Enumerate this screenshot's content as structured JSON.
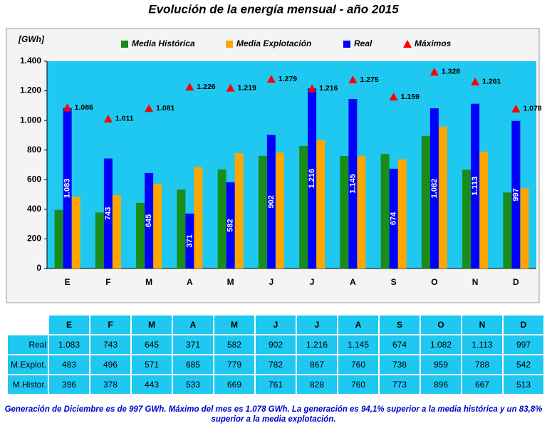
{
  "chart_data": {
    "type": "bar",
    "title": "Evolución de la energía mensual - año 2015",
    "y_label": "[GWh]",
    "categories": [
      "E",
      "F",
      "M",
      "A",
      "M",
      "J",
      "J",
      "A",
      "S",
      "O",
      "N",
      "D"
    ],
    "ylim": [
      0,
      1400
    ],
    "yticks": [
      0,
      200,
      400,
      600,
      800,
      {
        "value": 1000,
        "label": "1.000"
      },
      {
        "value": 1200,
        "label": "1.200"
      },
      {
        "value": 1400,
        "label": "1.400"
      }
    ],
    "grid": false,
    "legend": "top",
    "series": [
      {
        "name": "Media Histórica",
        "type": "bar",
        "color": "#1a8c1a",
        "values": [
          396,
          378,
          443,
          533,
          669,
          761,
          828,
          760,
          773,
          896,
          667,
          513
        ]
      },
      {
        "name": "Media Explotación",
        "type": "bar",
        "color": "#ffa500",
        "values": [
          483,
          496,
          571,
          685,
          779,
          782,
          867,
          760,
          738,
          959,
          788,
          542
        ]
      },
      {
        "name": "Real",
        "type": "bar",
        "color": "#0000ff",
        "values": [
          1083,
          743,
          645,
          371,
          582,
          902,
          1216,
          1145,
          674,
          1082,
          1113,
          997
        ],
        "value_labels": [
          "1.083",
          "743",
          "645",
          "371",
          "582",
          "902",
          "1.216",
          "1.145",
          "674",
          "1.082",
          "1.113",
          "997"
        ]
      },
      {
        "name": "Máximos",
        "type": "scatter",
        "marker": "triangle",
        "color": "#ff0000",
        "values": [
          1086,
          1011,
          1081,
          1226,
          1219,
          1279,
          1216,
          1275,
          1159,
          1328,
          1261,
          1078
        ],
        "value_labels": [
          "1.086",
          "1.011",
          "1.081",
          "1.226",
          "1.219",
          "1.279",
          "1.216",
          "1.275",
          "1.159",
          "1.328",
          "1.261",
          "1.078"
        ]
      }
    ]
  },
  "table": {
    "row_labels": [
      "Real",
      "M.Explot.",
      "M.Histor."
    ]
  },
  "note": "Generación de Diciembre es de 997 GWh. Máximo del mes es 1.078 GWh. La generación es 94,1%  superior a la media histórica y un 83,8%  superior a la media explotación."
}
